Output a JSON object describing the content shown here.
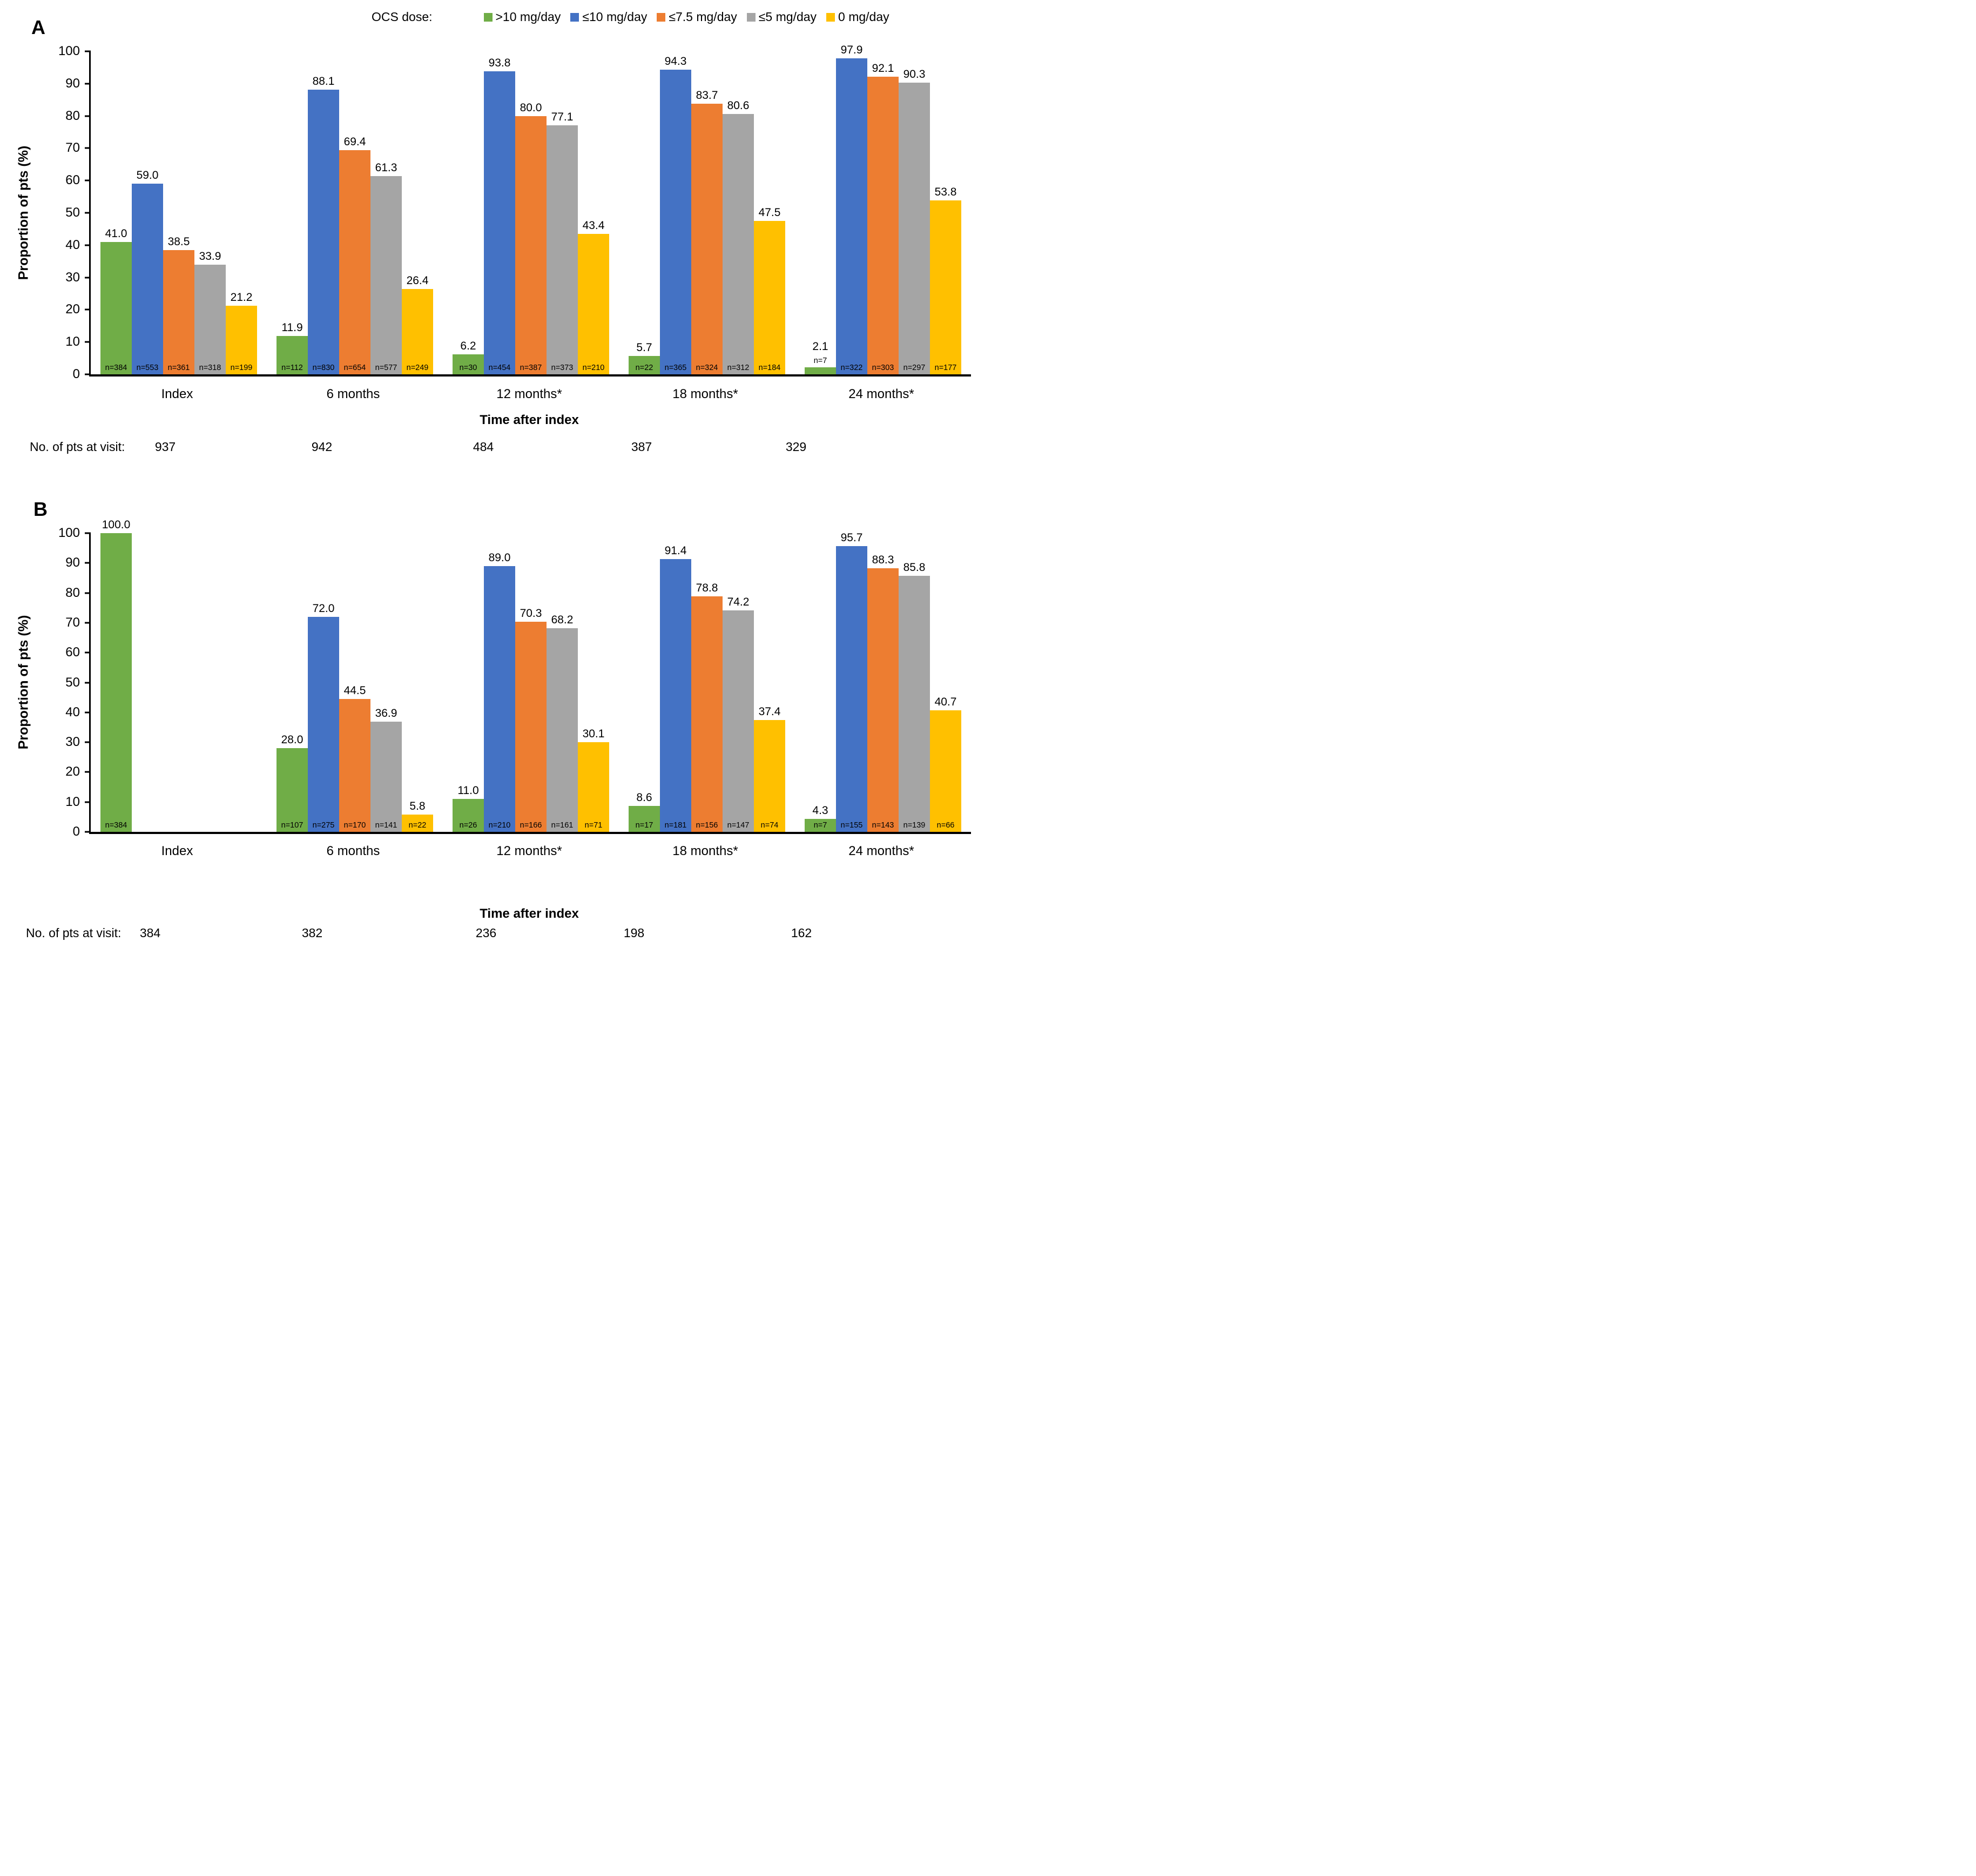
{
  "legend": {
    "title": "OCS dose:",
    "items": [
      {
        "label": ">10 mg/day",
        "color": "#70AD47",
        "icon": "legend-swatch-green"
      },
      {
        "label": "≤10 mg/day",
        "color": "#4472C4",
        "icon": "legend-swatch-blue"
      },
      {
        "label": "≤7.5 mg/day",
        "color": "#ED7D31",
        "icon": "legend-swatch-orange"
      },
      {
        "label": "≤5 mg/day",
        "color": "#A5A5A5",
        "icon": "legend-swatch-gray"
      },
      {
        "label": "0 mg/day",
        "color": "#FFC000",
        "icon": "legend-swatch-yellow"
      }
    ]
  },
  "chart_data": [
    {
      "panel": "A",
      "type": "bar",
      "ylabel": "Proportion of pts (%)",
      "xlabel": "Time after index",
      "ylim": [
        0,
        100
      ],
      "yticks": [
        0,
        10,
        20,
        30,
        40,
        50,
        60,
        70,
        80,
        90,
        100
      ],
      "grid": false,
      "legend_position": "top",
      "categories": [
        "Index",
        "6 months",
        "12 months*",
        "18 months*",
        "24 months*"
      ],
      "series": [
        {
          "name": ">10 mg/day",
          "color": "#70AD47",
          "values": [
            41.0,
            11.9,
            6.2,
            5.7,
            2.1
          ],
          "n": [
            384,
            112,
            30,
            22,
            7
          ]
        },
        {
          "name": "≤10 mg/day",
          "color": "#4472C4",
          "values": [
            59.0,
            88.1,
            93.8,
            94.3,
            97.9
          ],
          "n": [
            553,
            830,
            454,
            365,
            322
          ]
        },
        {
          "name": "≤7.5 mg/day",
          "color": "#ED7D31",
          "values": [
            38.5,
            69.4,
            80.0,
            83.7,
            92.1
          ],
          "n": [
            361,
            654,
            387,
            324,
            303
          ]
        },
        {
          "name": "≤5 mg/day",
          "color": "#A5A5A5",
          "values": [
            33.9,
            61.3,
            77.1,
            80.6,
            90.3
          ],
          "n": [
            318,
            577,
            373,
            312,
            297
          ]
        },
        {
          "name": "0 mg/day",
          "color": "#FFC000",
          "values": [
            21.2,
            26.4,
            43.4,
            47.5,
            53.8
          ],
          "n": [
            199,
            249,
            210,
            184,
            177
          ]
        }
      ],
      "pts_at_visit_label": "No. of pts at visit:",
      "pts_at_visit": [
        "937",
        "942",
        "484",
        "387",
        "329"
      ]
    },
    {
      "panel": "B",
      "type": "bar",
      "ylabel": "Proportion of pts (%)",
      "xlabel": "Time after index",
      "ylim": [
        0,
        100
      ],
      "yticks": [
        0,
        10,
        20,
        30,
        40,
        50,
        60,
        70,
        80,
        90,
        100
      ],
      "grid": false,
      "legend_position": "none",
      "categories": [
        "Index",
        "6 months",
        "12 months*",
        "18 months*",
        "24 months*"
      ],
      "series": [
        {
          "name": ">10 mg/day",
          "color": "#70AD47",
          "values": [
            100.0,
            28.0,
            11.0,
            8.6,
            4.3
          ],
          "n": [
            384,
            107,
            26,
            17,
            7
          ]
        },
        {
          "name": "≤10 mg/day",
          "color": "#4472C4",
          "values": [
            null,
            72.0,
            89.0,
            91.4,
            95.7
          ],
          "n": [
            null,
            275,
            210,
            181,
            155
          ]
        },
        {
          "name": "≤7.5 mg/day",
          "color": "#ED7D31",
          "values": [
            null,
            44.5,
            70.3,
            78.8,
            88.3
          ],
          "n": [
            null,
            170,
            166,
            156,
            143
          ]
        },
        {
          "name": "≤5 mg/day",
          "color": "#A5A5A5",
          "values": [
            null,
            36.9,
            68.2,
            74.2,
            85.8
          ],
          "n": [
            null,
            141,
            161,
            147,
            139
          ]
        },
        {
          "name": "0 mg/day",
          "color": "#FFC000",
          "values": [
            null,
            5.8,
            30.1,
            37.4,
            40.7
          ],
          "n": [
            null,
            22,
            71,
            74,
            66
          ]
        }
      ],
      "pts_at_visit_label": "No. of pts at visit:",
      "pts_at_visit": [
        "384",
        "382",
        "236",
        "198",
        "162"
      ]
    }
  ],
  "layout": {
    "pts_num_centers_a": [
      306,
      596,
      895,
      1188,
      1474
    ],
    "pts_num_centers_b": [
      278,
      578,
      900,
      1174,
      1484
    ]
  }
}
